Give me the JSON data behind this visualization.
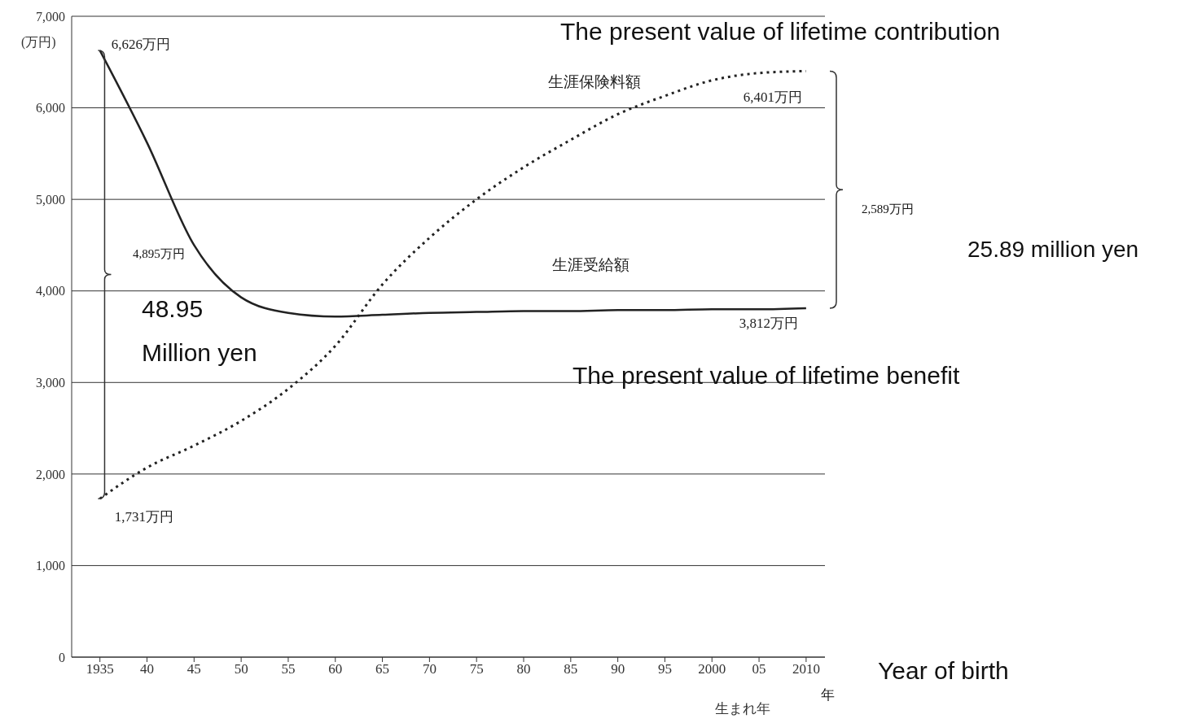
{
  "chart_data": {
    "type": "line",
    "ylabel": "(万円)",
    "xlabel": "生まれ年",
    "x": [
      1935,
      1940,
      1945,
      1950,
      1955,
      1960,
      1965,
      1970,
      1975,
      1980,
      1985,
      1990,
      1995,
      2000,
      2005,
      2010
    ],
    "series": [
      {
        "name": "生涯保険料額",
        "color": "#222222",
        "line_style": "dotted",
        "values": [
          1731,
          2070,
          2310,
          2580,
          2930,
          3400,
          4070,
          4580,
          5000,
          5350,
          5650,
          5930,
          6130,
          6300,
          6380,
          6401
        ],
        "value_labels": [
          "1,731万円",
          null,
          null,
          null,
          null,
          null,
          null,
          null,
          null,
          null,
          null,
          null,
          null,
          null,
          null,
          "6,401万円"
        ]
      },
      {
        "name": "生涯受給額",
        "color": "#222222",
        "line_style": "solid",
        "values": [
          6626,
          5620,
          4500,
          3930,
          3760,
          3720,
          3740,
          3760,
          3770,
          3780,
          3780,
          3790,
          3790,
          3800,
          3800,
          3812
        ],
        "value_labels": [
          "6,626万円",
          null,
          null,
          null,
          null,
          null,
          null,
          null,
          null,
          null,
          null,
          null,
          null,
          null,
          null,
          "3,812万円"
        ]
      }
    ],
    "xlim": [
      1932,
      2012
    ],
    "ylim": [
      0,
      7000
    ],
    "xticks": [
      {
        "value": 1935,
        "label": "1935"
      },
      {
        "value": 1940,
        "label": "40"
      },
      {
        "value": 1945,
        "label": "45"
      },
      {
        "value": 1950,
        "label": "50"
      },
      {
        "value": 1955,
        "label": "55"
      },
      {
        "value": 1960,
        "label": "60"
      },
      {
        "value": 1965,
        "label": "65"
      },
      {
        "value": 1970,
        "label": "70"
      },
      {
        "value": 1975,
        "label": "75"
      },
      {
        "value": 1980,
        "label": "80"
      },
      {
        "value": 1985,
        "label": "85"
      },
      {
        "value": 1990,
        "label": "90"
      },
      {
        "value": 1995,
        "label": "95"
      },
      {
        "value": 2000,
        "label": "2000"
      },
      {
        "value": 2005,
        "label": "05"
      },
      {
        "value": 2010,
        "label": "2010"
      }
    ],
    "yticks": [
      0,
      {
        "value": 1000,
        "label": "1,000"
      },
      {
        "value": 2000,
        "label": "2,000"
      },
      {
        "value": 3000,
        "label": "3,000"
      },
      {
        "value": 4000,
        "label": "4,000"
      },
      {
        "value": 5000,
        "label": "5,000"
      },
      {
        "value": 6000,
        "label": "6,000"
      },
      {
        "value": 7000,
        "label": "7,000"
      }
    ],
    "grid": "y",
    "marker": "none",
    "legend": false,
    "annotations": [
      "4,895万円",
      "2,589万円",
      "The present value of lifetime contribution",
      "The present value of lifetime benefit",
      "48.95 Million yen",
      "25.89 million yen",
      "Year of birth",
      "年"
    ]
  }
}
